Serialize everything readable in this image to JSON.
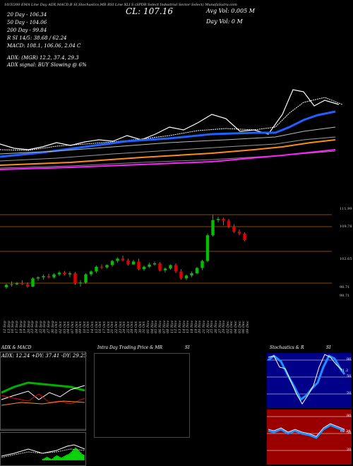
{
  "header": {
    "top_line": "10/3/200 EMA Line Day ADX,MACD,B SI,Stochastics,MR RSI Line XLI S (SPDR Select Industrial Sector Select) MunafaSutra.com",
    "cl": "CL: 107.16",
    "avg_vol": "Avg Vol: 0.005  M",
    "day_vol": "Day Vol: 0  M"
  },
  "ema_labels": [
    "20  Day - 106.34",
    "50  Day - 104.06",
    "200  Day - 99.84"
  ],
  "stats": [
    "R          SI 14/5: 38.68 / 62.24",
    "MACD: 108.1, 106.06, 2.04  C"
  ],
  "adx": {
    "line1": "ADX:                         (MGR) 12.2, 37.4, 29.3",
    "line2": "ADX  signal:                            BUY Slowing @ 6%"
  },
  "price_levels": [
    "111.99",
    "109.78",
    "102.65",
    "98.71",
    "98.71"
  ],
  "dates": [
    "12 Sep",
    "13 Sep",
    "16 Sep",
    "17 Sep",
    "18 Sep",
    "19 Sep",
    "20 Sep",
    "23 Sep",
    "24 Sep",
    "25 Sep",
    "26 Sep",
    "27 Sep",
    "30 Sep",
    "01 Oct",
    "02 Oct",
    "03 Oct",
    "04 Oct",
    "07 Oct",
    "08 Oct",
    "09 Oct",
    "10 Oct",
    "11 Oct",
    "14 Oct",
    "15 Oct",
    "16 Oct",
    "17 Oct",
    "18 Oct",
    "21 Oct",
    "22 Oct",
    "23 Oct",
    "24 Oct",
    "25 Oct",
    "28 Oct",
    "29 Oct",
    "30 Oct",
    "31 Oct",
    "01 Nov",
    "04 Nov",
    "05 Nov",
    "06 Nov",
    "07 Nov",
    "08 Nov",
    "11 Nov",
    "12 Nov",
    "13 Nov",
    "14 Nov",
    "15 Nov",
    "18 Nov",
    "19 Nov",
    "20 Nov",
    "21 Nov",
    "22 Nov",
    "25 Nov",
    "26 Nov",
    "27 Nov",
    "29 Nov",
    "02 Dec",
    "03 Dec",
    "04 Dec",
    "05 Dec",
    "06 Dec",
    "09 Dec"
  ],
  "panels": {
    "adx": {
      "title": "ADX  & MACD",
      "values": "ADX: 12.24  +DY: 37.41  -DY: 29.25"
    },
    "intra": {
      "title": "Intra  Day  Trading  Price   & MR",
      "suffix": "SI"
    },
    "stoch": {
      "title": "Stochastics & R",
      "suffix": "SI",
      "label": "71.2",
      "ticks": [
        "80",
        "50",
        "20"
      ],
      "rsi_label": "62.24",
      "rsi_ticks": [
        "80",
        "50",
        "20"
      ]
    }
  },
  "colors": {
    "up": "#00c000",
    "down": "#e00000",
    "ema20": "#2060ff",
    "ema50": "#ff8c1a",
    "ema200": "#ff20ff",
    "stoch_bg": "#000088",
    "rsi_bg": "#9a0000"
  },
  "chart_data": {
    "type": "candlestick",
    "title": "XLI (SPDR Select Industrial Sector Select)",
    "ylabel": "",
    "ylim": [
      97.5,
      112.5
    ],
    "series": [
      {
        "name": "20  Day",
        "values": []
      },
      {
        "name": "50  Day",
        "values": []
      },
      {
        "name": "200  Day",
        "values": []
      }
    ],
    "candles": [
      [
        99.1,
        99.7,
        98.8,
        99.5
      ],
      [
        99.5,
        100.1,
        99.2,
        99.6
      ],
      [
        99.6,
        100.0,
        99.4,
        99.8
      ],
      [
        99.8,
        100.3,
        99.5,
        99.6
      ],
      [
        99.6,
        99.9,
        99.0,
        99.2
      ],
      [
        99.2,
        100.8,
        99.1,
        100.6
      ],
      [
        100.6,
        101.0,
        100.2,
        100.8
      ],
      [
        100.8,
        101.3,
        100.4,
        101.0
      ],
      [
        101.0,
        101.4,
        100.6,
        100.8
      ],
      [
        100.8,
        101.5,
        100.6,
        101.3
      ],
      [
        101.3,
        101.9,
        101.0,
        101.6
      ],
      [
        101.6,
        101.9,
        101.1,
        101.3
      ],
      [
        101.3,
        101.8,
        100.8,
        101.5
      ],
      [
        101.5,
        101.7,
        99.5,
        99.8
      ],
      [
        99.8,
        100.3,
        99.2,
        99.9
      ],
      [
        99.9,
        101.5,
        99.7,
        101.3
      ],
      [
        101.3,
        102.0,
        101.0,
        101.8
      ],
      [
        101.8,
        102.8,
        101.5,
        102.6
      ],
      [
        102.6,
        103.0,
        102.2,
        102.5
      ],
      [
        102.5,
        103.0,
        102.3,
        102.9
      ],
      [
        102.9,
        103.8,
        102.6,
        103.6
      ],
      [
        103.6,
        104.2,
        103.3,
        104.0
      ],
      [
        104.0,
        104.5,
        103.5,
        103.7
      ],
      [
        103.7,
        104.0,
        102.8,
        103.0
      ],
      [
        103.0,
        103.8,
        102.9,
        103.5
      ],
      [
        103.5,
        104.0,
        102.0,
        102.2
      ],
      [
        102.2,
        102.8,
        101.9,
        102.6
      ],
      [
        102.6,
        103.3,
        102.4,
        103.0
      ],
      [
        103.0,
        103.5,
        102.8,
        103.2
      ],
      [
        103.2,
        103.4,
        101.8,
        102.0
      ],
      [
        102.0,
        102.5,
        101.6,
        102.3
      ],
      [
        102.3,
        103.0,
        102.1,
        102.9
      ],
      [
        102.9,
        103.2,
        101.5,
        101.8
      ],
      [
        101.8,
        102.2,
        100.4,
        100.6
      ],
      [
        100.6,
        101.3,
        100.3,
        101.1
      ],
      [
        101.1,
        101.8,
        100.8,
        101.5
      ],
      [
        101.5,
        102.6,
        101.3,
        102.4
      ],
      [
        102.4,
        103.8,
        102.0,
        103.6
      ],
      [
        103.6,
        108.3,
        103.4,
        108.0
      ],
      [
        108.0,
        111.5,
        107.8,
        110.6
      ],
      [
        110.6,
        111.2,
        110.2,
        110.8
      ],
      [
        110.8,
        111.0,
        109.7,
        110.5
      ],
      [
        110.5,
        110.8,
        109.2,
        109.5
      ],
      [
        109.5,
        109.9,
        108.4,
        108.6
      ],
      [
        108.6,
        109.0,
        108.0,
        108.3
      ],
      [
        108.3,
        108.5,
        107.0,
        107.16
      ]
    ]
  }
}
